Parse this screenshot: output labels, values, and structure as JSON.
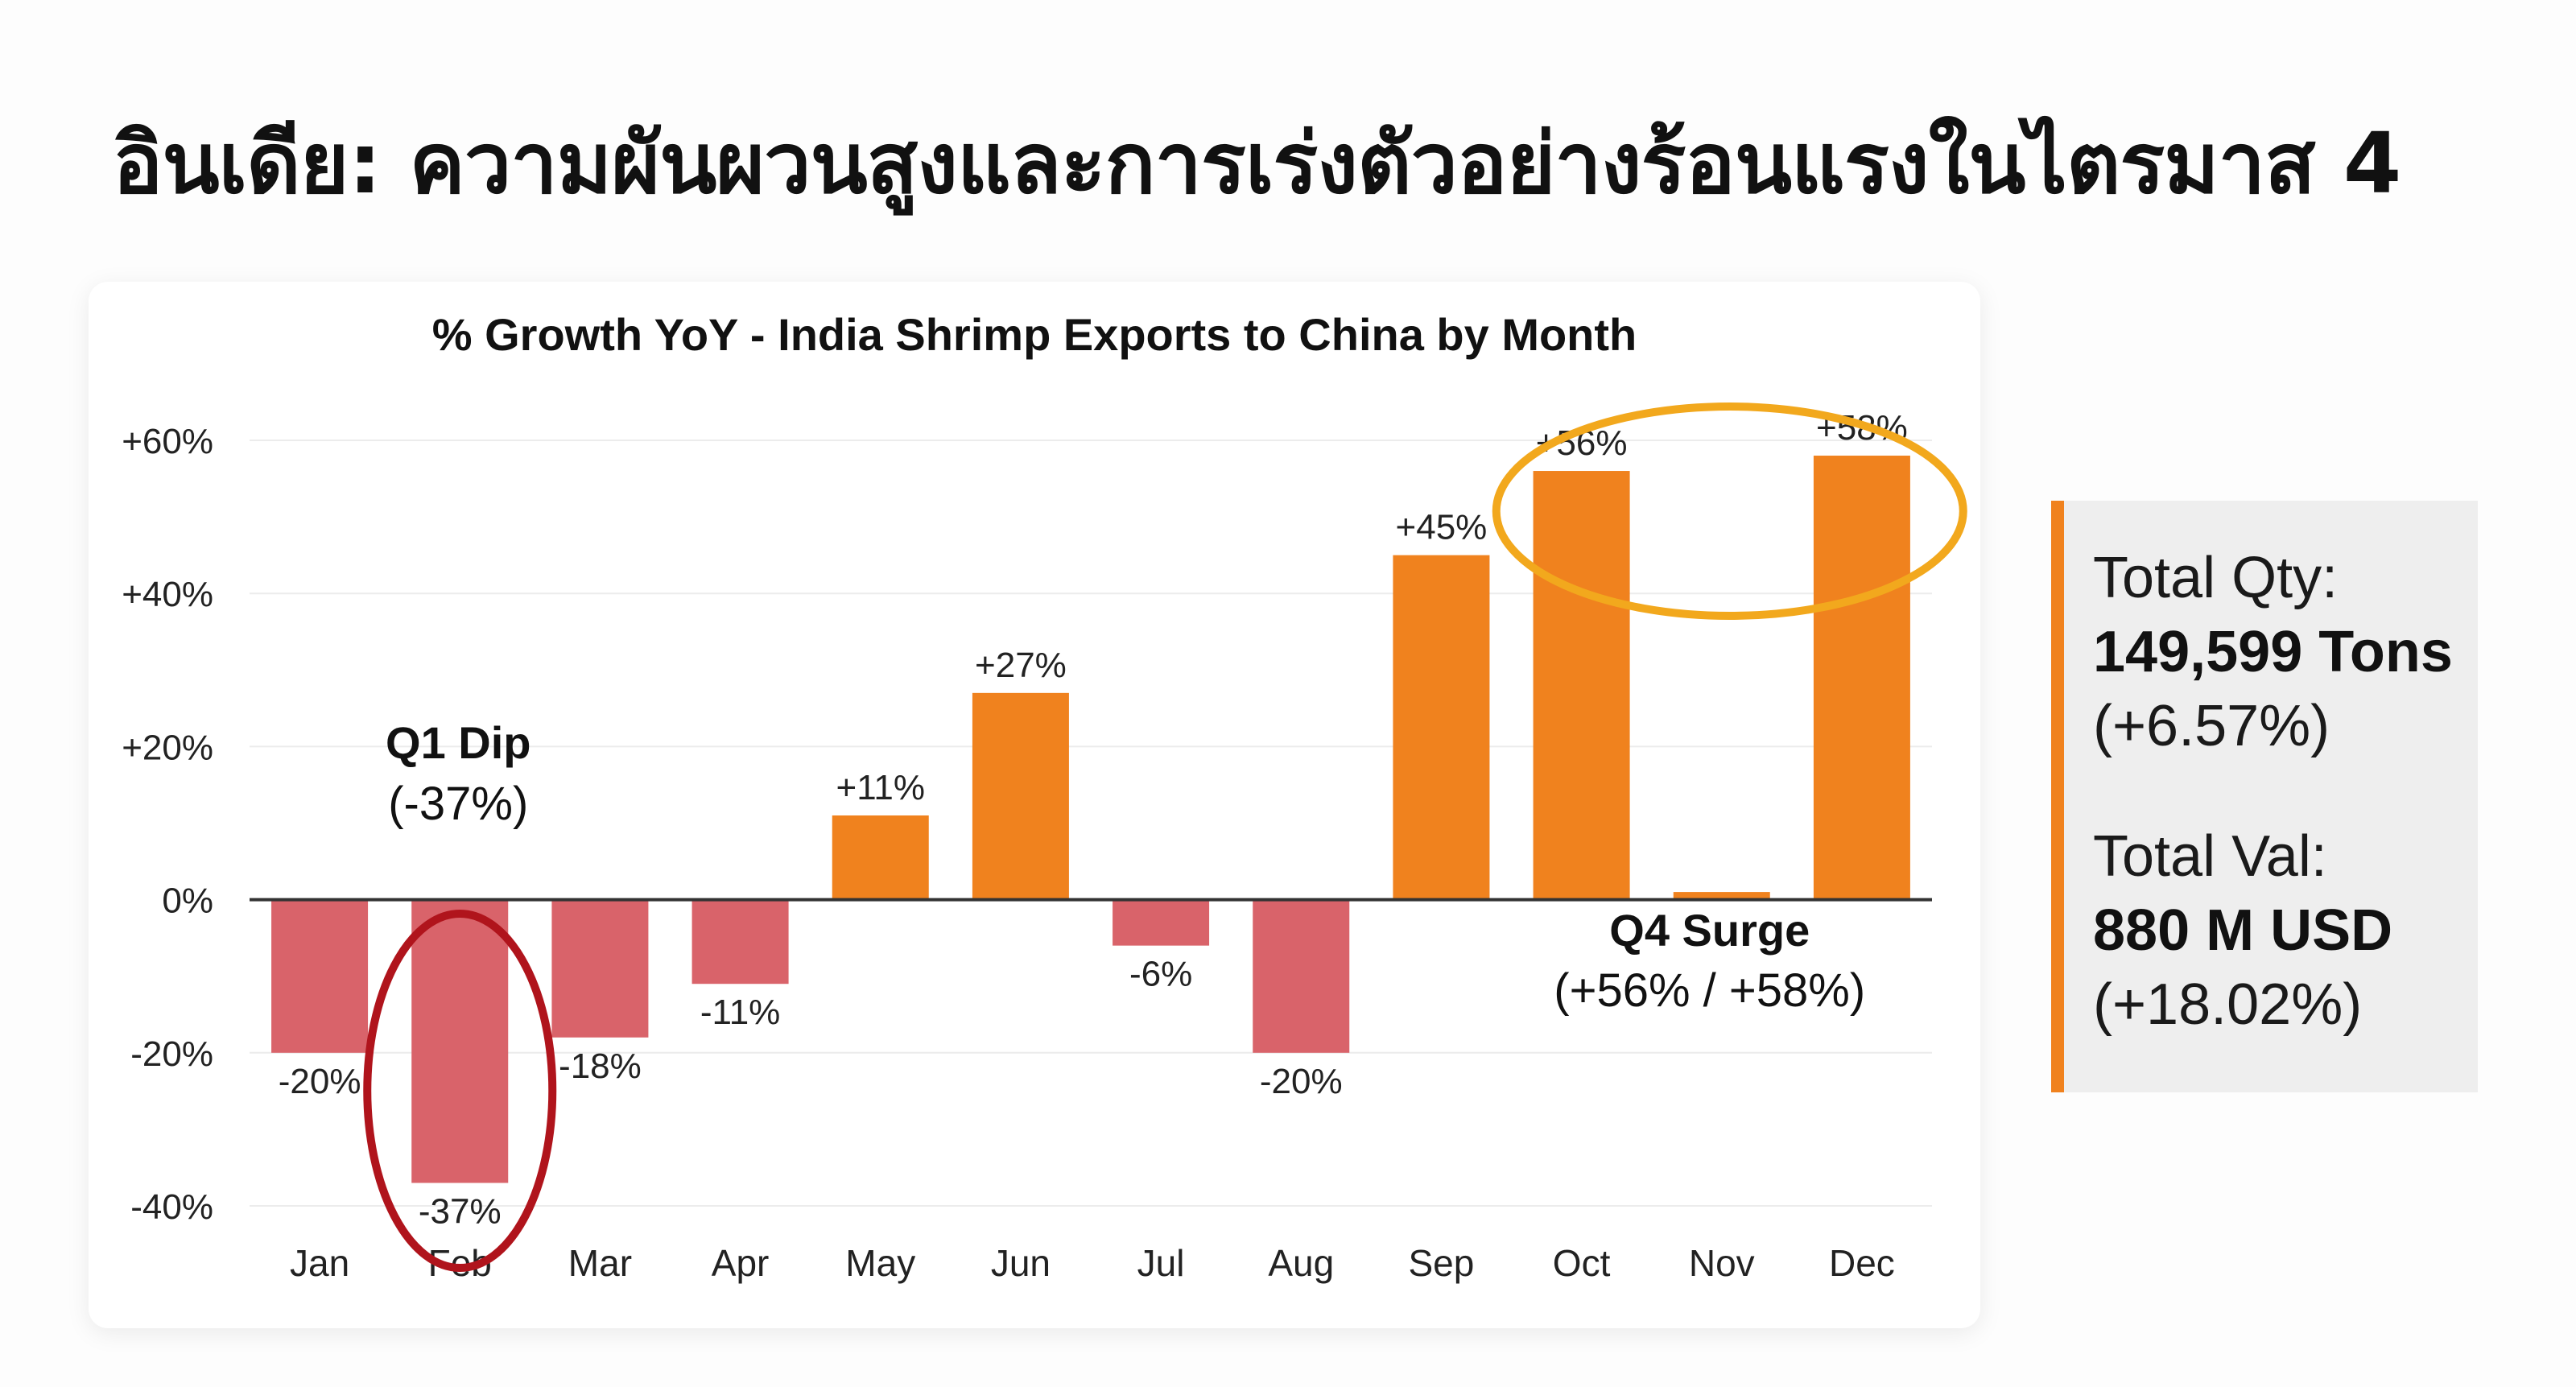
{
  "page": {
    "title": "อินเดีย: ความผันผวนสูงและการเร่งตัวอย่างร้อนแรงในไตรมาส 4"
  },
  "chart_data": {
    "type": "bar",
    "title": "% Growth YoY - India Shrimp Exports to China by Month",
    "xlabel": "",
    "ylabel": "",
    "categories": [
      "Jan",
      "Feb",
      "Mar",
      "Apr",
      "May",
      "Jun",
      "Jul",
      "Aug",
      "Sep",
      "Oct",
      "Nov",
      "Dec"
    ],
    "values": [
      -20,
      -37,
      -18,
      -11,
      11,
      27,
      -6,
      -20,
      45,
      56,
      1,
      58
    ],
    "data_labels": [
      "-20%",
      "-37%",
      "-18%",
      "-11%",
      "+11%",
      "+27%",
      "-6%",
      "-20%",
      "+45%",
      "+56%",
      "",
      "+58%"
    ],
    "ylim": [
      -40,
      60
    ],
    "yticks": [
      60,
      40,
      20,
      0,
      -20,
      -40
    ],
    "ytick_labels": [
      "+60%",
      "+40%",
      "+20%",
      "0%",
      "-20%",
      "-40%"
    ],
    "grid": true,
    "colors": {
      "positive": "#f0821e",
      "negative": "#d9636a",
      "q1_highlight": "#b0141c",
      "q4_highlight": "#f2a81d",
      "grid": "#ececec",
      "axis": "#333333"
    },
    "annotations": [
      {
        "title": "Q1 Dip",
        "detail": "(-37%)",
        "target": "Feb"
      },
      {
        "title": "Q4 Surge",
        "detail": "(+56% / +58%)",
        "target": "Oct-Dec"
      }
    ]
  },
  "stats": {
    "qty_label": "Total Qty:",
    "qty_value": "149,599 Tons",
    "qty_change": "(+6.57%)",
    "val_label": "Total Val:",
    "val_value": "880 M USD",
    "val_change": "(+18.02%)",
    "accent_color": "#f0821e"
  }
}
